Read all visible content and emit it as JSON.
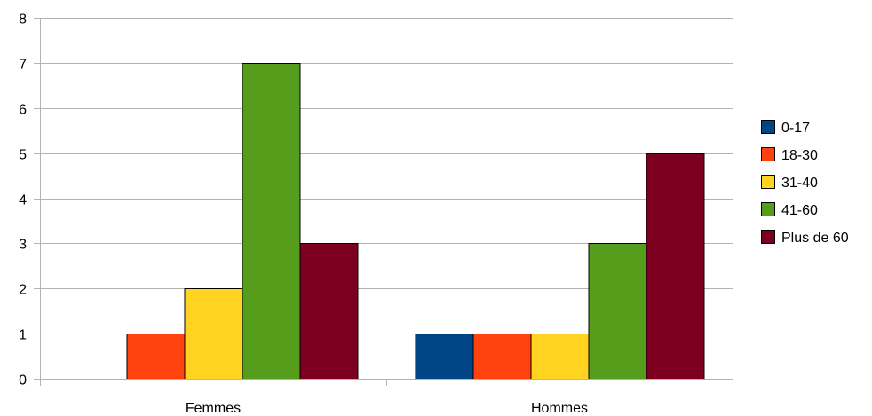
{
  "chart_data": {
    "type": "bar",
    "title": "",
    "xlabel": "",
    "ylabel": "",
    "categories": [
      "Femmes",
      "Hommes"
    ],
    "ylim": [
      0,
      8
    ],
    "yticks": [
      0,
      1,
      2,
      3,
      4,
      5,
      6,
      7,
      8
    ],
    "grid": true,
    "legend_position": "right",
    "series": [
      {
        "name": "0-17",
        "color": "#004586",
        "values": [
          0,
          1
        ]
      },
      {
        "name": "18-30",
        "color": "#ff420e",
        "values": [
          1,
          1
        ]
      },
      {
        "name": "31-40",
        "color": "#ffd320",
        "values": [
          2,
          1
        ]
      },
      {
        "name": "41-60",
        "color": "#579d1c",
        "values": [
          7,
          3
        ]
      },
      {
        "name": "Plus de 60",
        "color": "#7e0021",
        "values": [
          3,
          5
        ]
      }
    ]
  }
}
